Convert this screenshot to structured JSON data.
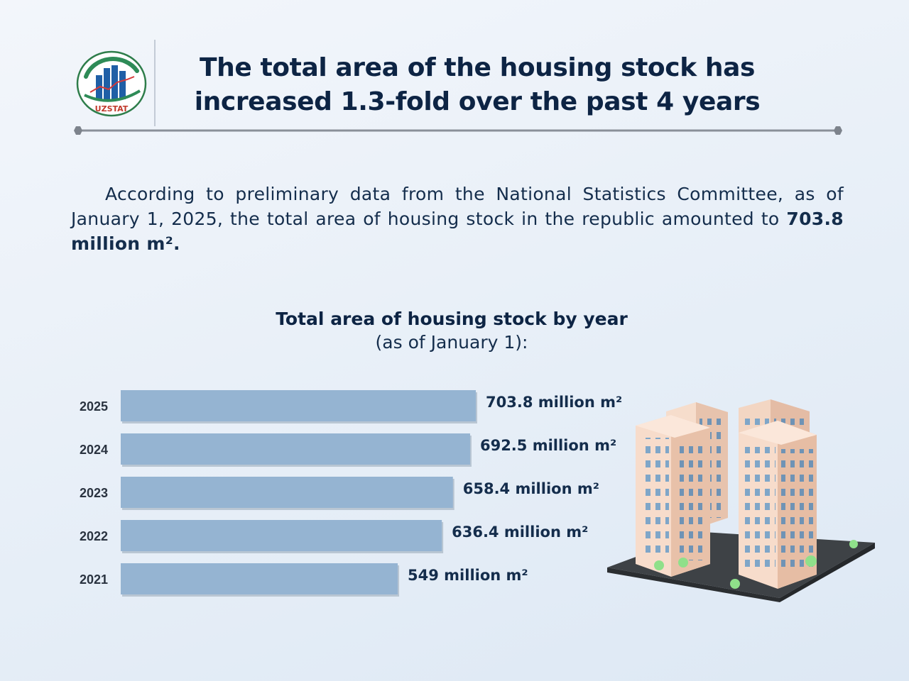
{
  "header": {
    "logo_text": "UZSTAT",
    "title_line1": "The total area of the housing stock has",
    "title_line2": "increased 1.3-fold over the past 4 years"
  },
  "intro": {
    "text": "According to preliminary data from the National Statistics Committee, as of January 1, 2025, the total area of housing stock in the republic amounted to",
    "highlight": "703.8 million m²."
  },
  "colors": {
    "bar": "#95b4d2",
    "title": "#0d2444",
    "rule": "#8a9099"
  },
  "building_icon": "apartment-buildings-icon",
  "chart_data": {
    "type": "bar",
    "orientation": "horizontal",
    "title": "Total area of housing stock by year",
    "subtitle": "(as of January 1):",
    "categories": [
      "2025",
      "2024",
      "2023",
      "2022",
      "2021"
    ],
    "values": [
      703.8,
      692.5,
      658.4,
      636.4,
      549
    ],
    "data_labels": [
      "703.8 million m²",
      "692.5 million m²",
      "658.4 million m²",
      "636.4 million m²",
      "549 million m²"
    ],
    "unit": "million m²",
    "xlim": [
      0,
      703.8
    ],
    "grid": false,
    "legend": "none"
  }
}
